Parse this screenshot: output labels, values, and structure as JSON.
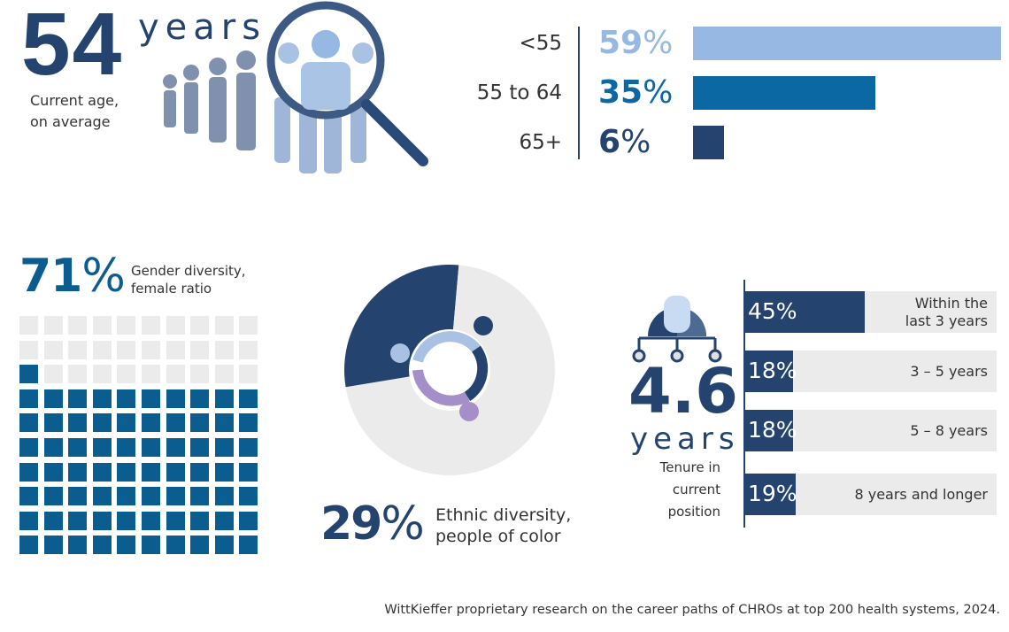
{
  "age": {
    "value": "54",
    "unit": "years",
    "caption_line1": "Current age,",
    "caption_line2": "on average"
  },
  "gender": {
    "value": "71",
    "percent_sign": "%",
    "caption_line1": "Gender diversity,",
    "caption_line2": "female ratio"
  },
  "ethnic": {
    "value": "29",
    "percent_sign": "%",
    "caption_line1": "Ethnic diversity,",
    "caption_line2": "people of color"
  },
  "tenure": {
    "value": "4.6",
    "unit": "years",
    "caption_line1": "Tenure in",
    "caption_line2": "current",
    "caption_line3": "position"
  },
  "footer": "WittKieffer proprietary research on the career paths of CHROs at top 200 health systems, 2024.",
  "colors": {
    "navy": "#24446f",
    "blue": "#0b68a3",
    "light_blue": "#97b8e2",
    "grey": "#ebebeb",
    "waffle_blue": "#0b5c8f"
  },
  "chart_data": [
    {
      "type": "bar",
      "orientation": "horizontal",
      "categories": [
        "<55",
        "55 to 64",
        "65+"
      ],
      "values": [
        59,
        35,
        6
      ],
      "labels": [
        "59",
        "35",
        "6"
      ],
      "unit": "%",
      "colors": [
        "#97b8e2",
        "#0b68a3",
        "#24446f"
      ]
    },
    {
      "type": "waffle",
      "grid": "10x10",
      "filled": 71,
      "total": 100
    },
    {
      "type": "pie",
      "values": [
        29,
        71
      ],
      "colors": [
        "#24446f",
        "#ebebeb"
      ]
    },
    {
      "type": "bar",
      "orientation": "horizontal",
      "categories": [
        "Within the last 3 years",
        "3 – 5 years",
        "5 – 8 years",
        "8 years and longer"
      ],
      "label_lines": [
        [
          "Within the",
          "last 3 years"
        ],
        [
          "3 – 5 years"
        ],
        [
          "5 – 8 years"
        ],
        [
          "8 years and longer"
        ]
      ],
      "values": [
        45,
        18,
        18,
        19
      ],
      "labels": [
        "45%",
        "18%",
        "18%",
        "19%"
      ]
    }
  ]
}
